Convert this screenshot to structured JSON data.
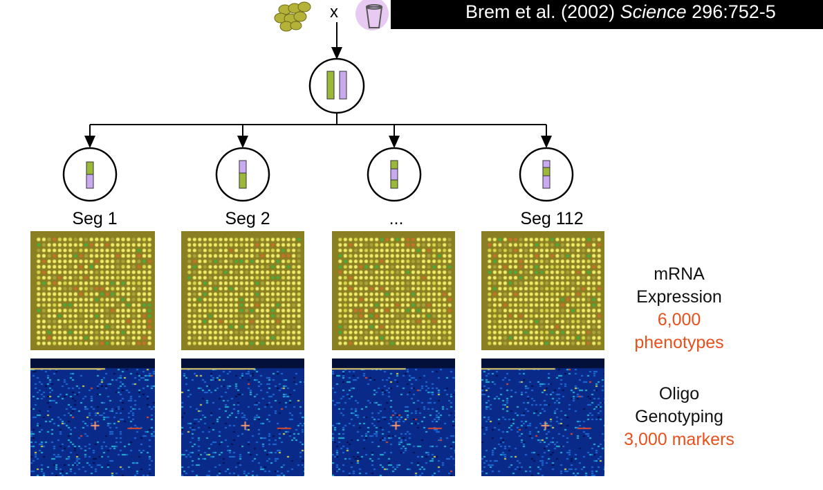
{
  "citation": {
    "authors": "Brem et al. (2002) ",
    "journal": "Science",
    "rest": " 296:752-5"
  },
  "cross_symbol": "x",
  "segregants": [
    {
      "label": "Seg 1"
    },
    {
      "label": "Seg 2"
    },
    {
      "label": "..."
    },
    {
      "label": "Seg 112"
    }
  ],
  "expression": {
    "line1": "mRNA",
    "line2": "Expression",
    "count": "6,000",
    "unit": "phenotypes"
  },
  "genotyping": {
    "line1": "Oligo",
    "line2": "Genotyping",
    "count": "3,000 markers"
  },
  "colors": {
    "green_chrom": "#9bb83a",
    "purple_chrom": "#c9a9ef",
    "accent_red": "#e8501c",
    "array_bg": "#8a7f22",
    "genotype_bg": "#0a2a8a"
  }
}
